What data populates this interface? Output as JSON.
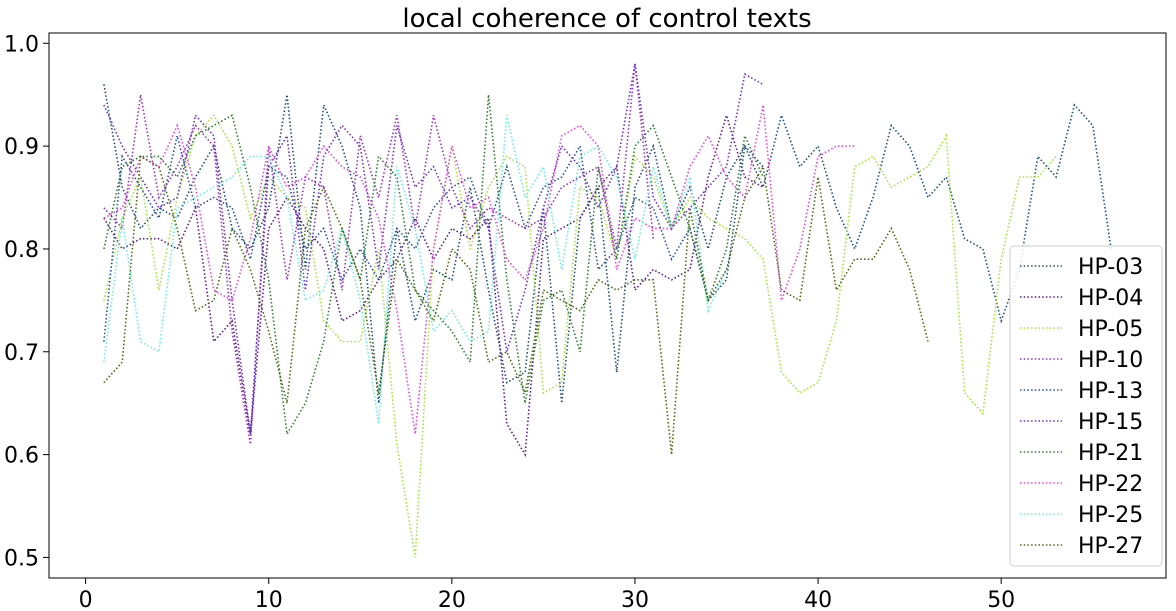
{
  "chart_data": {
    "type": "line",
    "title": "local coherence of control texts",
    "xlabel": "",
    "ylabel": "",
    "xlim": [
      -2,
      59
    ],
    "ylim": [
      0.48,
      1.01
    ],
    "xticks": [
      0,
      10,
      20,
      30,
      40,
      50
    ],
    "xtick_labels": [
      "0",
      "10",
      "20",
      "30",
      "40",
      "50"
    ],
    "yticks": [
      0.5,
      0.6,
      0.7,
      0.8,
      0.9,
      1.0
    ],
    "ytick_labels": [
      "0.5",
      "0.6",
      "0.7",
      "0.8",
      "0.9",
      "1.0"
    ],
    "grid": false,
    "legend_position": "lower-right",
    "series": [
      {
        "name": "HP-03",
        "color": "#1f4e79",
        "x": [
          1,
          2,
          3,
          4,
          5,
          6,
          7,
          8,
          9,
          10,
          11,
          12,
          13,
          14,
          15,
          16,
          17,
          18,
          19,
          20,
          21,
          22,
          23,
          24,
          25,
          26,
          27,
          28,
          29,
          30,
          31,
          32,
          33,
          34,
          35,
          36,
          37,
          38,
          39,
          40,
          41,
          42,
          43,
          44,
          45,
          46,
          47,
          48,
          49,
          50,
          51,
          52,
          53,
          54,
          55,
          56
        ],
        "y": [
          0.96,
          0.86,
          0.82,
          0.84,
          0.83,
          0.87,
          0.9,
          0.82,
          0.8,
          0.84,
          0.95,
          0.78,
          0.94,
          0.9,
          0.84,
          0.65,
          0.82,
          0.73,
          0.78,
          0.77,
          0.86,
          0.76,
          0.67,
          0.68,
          0.84,
          0.65,
          0.83,
          0.86,
          0.68,
          0.86,
          0.9,
          0.82,
          0.86,
          0.8,
          0.87,
          0.9,
          0.86,
          0.93,
          0.88,
          0.9,
          0.84,
          0.8,
          0.85,
          0.92,
          0.9,
          0.85,
          0.87,
          0.81,
          0.8,
          0.73,
          0.78,
          0.89,
          0.87,
          0.94,
          0.92,
          0.8
        ]
      },
      {
        "name": "HP-04",
        "color": "#5c1a8a",
        "x": [
          1,
          2,
          3,
          4,
          5,
          6,
          7,
          8,
          9,
          10,
          11,
          12,
          13,
          14,
          15,
          16,
          17,
          18,
          19,
          20,
          21,
          22,
          23,
          24,
          25,
          26,
          27,
          28,
          29,
          30,
          31,
          32,
          33,
          34,
          35,
          36,
          37
        ],
        "y": [
          0.83,
          0.8,
          0.81,
          0.81,
          0.8,
          0.84,
          0.71,
          0.73,
          0.62,
          0.82,
          0.85,
          0.82,
          0.8,
          0.73,
          0.74,
          0.77,
          0.79,
          0.83,
          0.79,
          0.82,
          0.81,
          0.83,
          0.63,
          0.6,
          0.81,
          0.82,
          0.83,
          0.86,
          0.88,
          0.76,
          0.78,
          0.77,
          0.78,
          0.87,
          0.93,
          0.87,
          0.86
        ]
      },
      {
        "name": "HP-05",
        "color": "#a0e632",
        "x": [
          1,
          2,
          3,
          4,
          5,
          6,
          7,
          8,
          9,
          10,
          11,
          12,
          13,
          14,
          15,
          16,
          17,
          18,
          19,
          20,
          21,
          22,
          23,
          24,
          25,
          26,
          27,
          28,
          29,
          30,
          31,
          32,
          33,
          34,
          35,
          36,
          37,
          38,
          39,
          40,
          41,
          42,
          43,
          44,
          45,
          46,
          47,
          48,
          49,
          50,
          51,
          52,
          53
        ],
        "y": [
          0.75,
          0.83,
          0.87,
          0.76,
          0.85,
          0.91,
          0.93,
          0.9,
          0.83,
          0.87,
          0.85,
          0.84,
          0.73,
          0.71,
          0.71,
          0.8,
          0.61,
          0.5,
          0.8,
          0.9,
          0.8,
          0.86,
          0.89,
          0.88,
          0.66,
          0.67,
          0.86,
          0.85,
          0.79,
          0.89,
          0.87,
          0.82,
          0.85,
          0.83,
          0.82,
          0.81,
          0.79,
          0.68,
          0.66,
          0.67,
          0.73,
          0.88,
          0.89,
          0.86,
          0.87,
          0.88,
          0.91,
          0.66,
          0.64,
          0.79,
          0.87,
          0.87,
          0.89
        ]
      },
      {
        "name": "HP-10",
        "color": "#9b2fc4",
        "x": [
          1,
          2,
          3,
          4,
          5,
          6,
          7,
          8,
          9,
          10,
          11,
          12,
          13,
          14,
          15,
          16,
          17,
          18,
          19,
          20,
          21,
          22,
          23,
          24,
          25,
          26,
          27,
          28,
          29,
          30,
          31
        ],
        "y": [
          0.84,
          0.82,
          0.95,
          0.85,
          0.88,
          0.92,
          0.9,
          0.72,
          0.61,
          0.9,
          0.77,
          0.87,
          0.86,
          0.76,
          0.91,
          0.85,
          0.93,
          0.82,
          0.93,
          0.86,
          0.82,
          0.84,
          0.83,
          0.82,
          0.83,
          0.86,
          0.87,
          0.88,
          0.8,
          0.98,
          0.81
        ]
      },
      {
        "name": "HP-13",
        "color": "#2b4f9e",
        "x": [
          1,
          2,
          3,
          4,
          5,
          6,
          7,
          8,
          9,
          10,
          11,
          12,
          13,
          14,
          15,
          16,
          17,
          18,
          19,
          20,
          21,
          22,
          23,
          24,
          25,
          26,
          27,
          28,
          29,
          30,
          31,
          32,
          33,
          34,
          35,
          36,
          37
        ],
        "y": [
          0.71,
          0.89,
          0.86,
          0.83,
          0.91,
          0.84,
          0.85,
          0.84,
          0.79,
          0.88,
          0.87,
          0.8,
          0.82,
          0.77,
          0.8,
          0.77,
          0.82,
          0.8,
          0.84,
          0.86,
          0.87,
          0.82,
          0.88,
          0.82,
          0.86,
          0.87,
          0.9,
          0.78,
          0.8,
          0.85,
          0.84,
          0.79,
          0.82,
          0.75,
          0.77,
          0.9,
          0.88
        ]
      },
      {
        "name": "HP-15",
        "color": "#6a2fd0",
        "x": [
          1,
          2,
          3,
          4,
          5,
          6,
          7,
          8,
          9,
          10,
          11,
          12,
          13,
          14,
          15,
          16,
          17,
          18,
          19,
          20,
          21,
          22,
          23,
          24,
          25,
          26,
          27,
          28,
          29,
          30,
          31,
          32,
          33,
          34,
          35,
          36,
          37
        ],
        "y": [
          0.94,
          0.9,
          0.87,
          0.84,
          0.85,
          0.93,
          0.91,
          0.75,
          0.62,
          0.88,
          0.91,
          0.76,
          0.89,
          0.92,
          0.9,
          0.78,
          0.92,
          0.86,
          0.88,
          0.84,
          0.85,
          0.82,
          0.7,
          0.76,
          0.84,
          0.9,
          0.88,
          0.84,
          0.88,
          0.98,
          0.85,
          0.82,
          0.84,
          0.86,
          0.88,
          0.97,
          0.96
        ]
      },
      {
        "name": "HP-21",
        "color": "#2e7d32",
        "x": [
          1,
          2,
          3,
          4,
          5,
          6,
          7,
          8,
          9,
          10,
          11,
          12,
          13,
          14,
          15,
          16,
          17,
          18,
          19,
          20,
          21,
          22,
          23,
          24,
          25,
          26,
          27,
          28,
          29,
          30,
          31,
          32,
          33,
          34,
          35,
          36,
          37
        ],
        "y": [
          0.8,
          0.88,
          0.89,
          0.89,
          0.87,
          0.91,
          0.92,
          0.93,
          0.86,
          0.77,
          0.62,
          0.65,
          0.71,
          0.82,
          0.77,
          0.89,
          0.87,
          0.76,
          0.74,
          0.72,
          0.69,
          0.95,
          0.77,
          0.65,
          0.75,
          0.76,
          0.7,
          0.88,
          0.79,
          0.9,
          0.92,
          0.87,
          0.82,
          0.75,
          0.8,
          0.91,
          0.87
        ]
      },
      {
        "name": "HP-22",
        "color": "#f040d8",
        "x": [
          1,
          2,
          3,
          4,
          5,
          6,
          7,
          8,
          9,
          10,
          11,
          12,
          13,
          14,
          15,
          16,
          17,
          18,
          19,
          20,
          21,
          22,
          23,
          24,
          25,
          26,
          27,
          28,
          29,
          30,
          31,
          32,
          33,
          34,
          35,
          36,
          37,
          38,
          39,
          40,
          41,
          42
        ],
        "y": [
          0.83,
          0.84,
          0.89,
          0.88,
          0.92,
          0.86,
          0.76,
          0.75,
          0.81,
          0.9,
          0.86,
          0.87,
          0.9,
          0.88,
          0.87,
          0.83,
          0.74,
          0.62,
          0.8,
          0.9,
          0.84,
          0.85,
          0.79,
          0.77,
          0.82,
          0.91,
          0.92,
          0.9,
          0.78,
          0.83,
          0.82,
          0.82,
          0.88,
          0.91,
          0.87,
          0.85,
          0.94,
          0.75,
          0.8,
          0.89,
          0.9,
          0.9
        ]
      },
      {
        "name": "HP-25",
        "color": "#5ff0e0",
        "x": [
          1,
          2,
          3,
          4,
          5,
          6,
          7,
          8,
          9,
          10,
          11,
          12,
          13,
          14,
          15,
          16,
          17,
          18,
          19,
          20,
          21,
          22,
          23,
          24,
          25,
          26,
          27,
          28,
          29,
          30,
          31,
          32,
          33,
          34,
          35
        ],
        "y": [
          0.69,
          0.83,
          0.71,
          0.7,
          0.84,
          0.85,
          0.86,
          0.87,
          0.89,
          0.89,
          0.85,
          0.75,
          0.76,
          0.82,
          0.75,
          0.63,
          0.88,
          0.82,
          0.72,
          0.74,
          0.71,
          0.72,
          0.93,
          0.85,
          0.88,
          0.78,
          0.89,
          0.9,
          0.87,
          0.79,
          0.88,
          0.82,
          0.87,
          0.74,
          0.78
        ]
      },
      {
        "name": "HP-27",
        "color": "#4a6b10",
        "x": [
          1,
          2,
          3,
          4,
          5,
          6,
          7,
          8,
          9,
          10,
          11,
          12,
          13,
          14,
          15,
          16,
          17,
          18,
          19,
          20,
          21,
          22,
          23,
          24,
          25,
          26,
          27,
          28,
          29,
          30,
          31,
          32,
          33,
          34,
          35,
          36,
          37,
          38,
          39,
          40,
          41,
          42,
          43,
          44,
          45,
          46
        ],
        "y": [
          0.67,
          0.69,
          0.89,
          0.88,
          0.82,
          0.74,
          0.75,
          0.82,
          0.78,
          0.72,
          0.65,
          0.82,
          0.86,
          0.82,
          0.77,
          0.66,
          0.79,
          0.76,
          0.73,
          0.8,
          0.78,
          0.69,
          0.7,
          0.66,
          0.76,
          0.75,
          0.74,
          0.77,
          0.76,
          0.77,
          0.77,
          0.6,
          0.84,
          0.75,
          0.78,
          0.85,
          0.88,
          0.76,
          0.75,
          0.87,
          0.76,
          0.79,
          0.79,
          0.82,
          0.78,
          0.71
        ]
      }
    ]
  }
}
